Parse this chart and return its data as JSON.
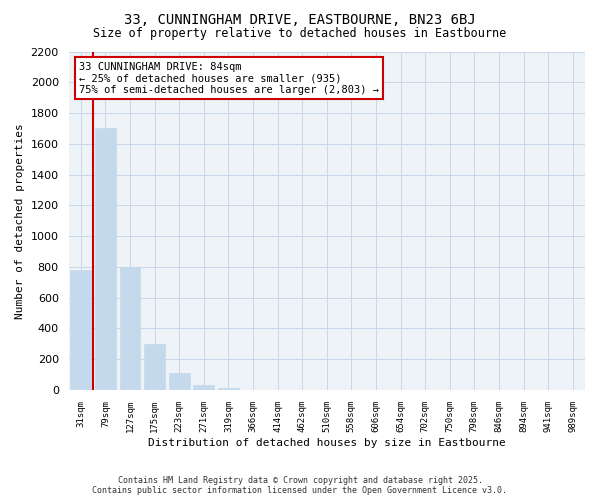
{
  "title": "33, CUNNINGHAM DRIVE, EASTBOURNE, BN23 6BJ",
  "subtitle": "Size of property relative to detached houses in Eastbourne",
  "xlabel": "Distribution of detached houses by size in Eastbourne",
  "ylabel": "Number of detached properties",
  "bar_values": [
    780,
    1700,
    800,
    300,
    110,
    35,
    15,
    0,
    0,
    0,
    0,
    0,
    0,
    0,
    0,
    0,
    0,
    0,
    0,
    0,
    0
  ],
  "bar_labels": [
    "31sqm",
    "79sqm",
    "127sqm",
    "175sqm",
    "223sqm",
    "271sqm",
    "319sqm",
    "366sqm",
    "414sqm",
    "462sqm",
    "510sqm",
    "558sqm",
    "606sqm",
    "654sqm",
    "702sqm",
    "750sqm",
    "798sqm",
    "846sqm",
    "894sqm",
    "941sqm",
    "989sqm"
  ],
  "bar_color": "#c5d9ec",
  "bar_edge_color": "#c5d9ec",
  "ylim": [
    0,
    2200
  ],
  "yticks": [
    0,
    200,
    400,
    600,
    800,
    1000,
    1200,
    1400,
    1600,
    1800,
    2000,
    2200
  ],
  "red_line_x": 0.5,
  "annotation_title": "33 CUNNINGHAM DRIVE: 84sqm",
  "annotation_line1": "← 25% of detached houses are smaller (935)",
  "annotation_line2": "75% of semi-detached houses are larger (2,803) →",
  "annotation_box_color": "#ffffff",
  "annotation_border_color": "#cc0000",
  "grid_color": "#c8d8e8",
  "background_color": "#eef3f8",
  "footer1": "Contains HM Land Registry data © Crown copyright and database right 2025.",
  "footer2": "Contains public sector information licensed under the Open Government Licence v3.0."
}
